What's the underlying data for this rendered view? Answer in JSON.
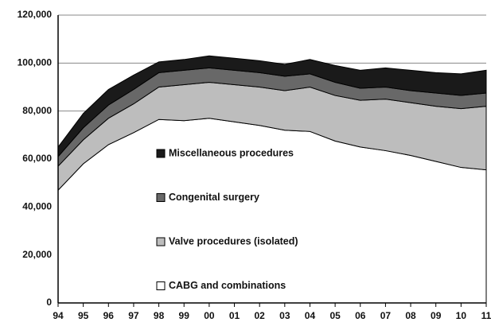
{
  "chart_data": {
    "type": "stacked-area",
    "categories": [
      "94",
      "95",
      "96",
      "97",
      "98",
      "99",
      "00",
      "01",
      "02",
      "03",
      "04",
      "05",
      "06",
      "07",
      "08",
      "09",
      "10",
      "11"
    ],
    "series": [
      {
        "name": "CABG and combinations",
        "color": "#ffffff",
        "values": [
          47000,
          58000,
          66000,
          71000,
          76500,
          76000,
          77000,
          75500,
          74000,
          72000,
          71500,
          67500,
          65000,
          63500,
          61500,
          59000,
          56500,
          55500
        ]
      },
      {
        "name": "Valve procedures (isolated)",
        "color": "#bdbdbd",
        "values": [
          10000,
          10000,
          11000,
          12000,
          13500,
          15000,
          15000,
          15500,
          16000,
          16500,
          18500,
          19000,
          19500,
          21500,
          22000,
          23000,
          24500,
          26500
        ]
      },
      {
        "name": "Congenital surgery",
        "color": "#686868",
        "values": [
          4000,
          5000,
          5500,
          6000,
          6000,
          6000,
          6000,
          6000,
          6000,
          6000,
          5500,
          5500,
          5000,
          5000,
          5000,
          5500,
          5500,
          5500
        ]
      },
      {
        "name": "Miscellaneous procedures",
        "color": "#1a1a1a",
        "values": [
          4000,
          6000,
          6500,
          6000,
          4500,
          4500,
          5000,
          5000,
          5000,
          5000,
          6000,
          7000,
          7500,
          8000,
          8500,
          8500,
          9000,
          9500
        ]
      }
    ],
    "ylim": [
      0,
      120000
    ],
    "yticks": [
      0,
      {
        "value": 20000,
        "label": "20,000"
      },
      {
        "value": 40000,
        "label": "40,000"
      },
      {
        "value": 60000,
        "label": "60,000"
      },
      {
        "value": 80000,
        "label": "80,000"
      },
      {
        "value": 100000,
        "label": "100,000"
      },
      {
        "value": 120000,
        "label": "120,000"
      }
    ],
    "grid": true,
    "legend": "center"
  }
}
